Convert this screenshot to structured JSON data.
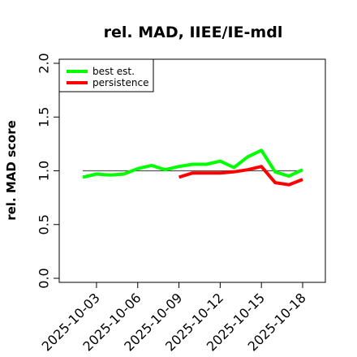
{
  "chart_data": {
    "type": "line",
    "title": "rel. MAD, IIEE/IE-mdl",
    "xlabel": "",
    "ylabel": "rel. MAD score",
    "x": [
      "2025-10-02",
      "2025-10-03",
      "2025-10-04",
      "2025-10-05",
      "2025-10-06",
      "2025-10-07",
      "2025-10-08",
      "2025-10-09",
      "2025-10-10",
      "2025-10-11",
      "2025-10-12",
      "2025-10-13",
      "2025-10-14",
      "2025-10-15",
      "2025-10-16",
      "2025-10-17",
      "2025-10-18"
    ],
    "x_tick_labels": [
      "2025-10-03",
      "2025-10-06",
      "2025-10-09",
      "2025-10-12",
      "2025-10-15",
      "2025-10-18"
    ],
    "y_ticks": [
      "0.0",
      "0.5",
      "1.0",
      "1.5",
      "2.0"
    ],
    "ylim": [
      0.0,
      2.0
    ],
    "reference_line": 1.0,
    "grid": false,
    "legend_position": "top-left",
    "series": [
      {
        "name": "best est.",
        "color": "#00ff00",
        "values": [
          0.94,
          0.97,
          0.96,
          0.97,
          1.02,
          1.05,
          1.01,
          1.04,
          1.06,
          1.06,
          1.09,
          1.03,
          1.13,
          1.19,
          0.99,
          0.95,
          1.01
        ]
      },
      {
        "name": "persistence",
        "color": "#ff0000",
        "values": [
          null,
          null,
          null,
          null,
          null,
          null,
          null,
          0.94,
          0.98,
          0.98,
          0.98,
          0.99,
          1.01,
          1.04,
          0.89,
          0.87,
          0.92
        ]
      }
    ]
  }
}
